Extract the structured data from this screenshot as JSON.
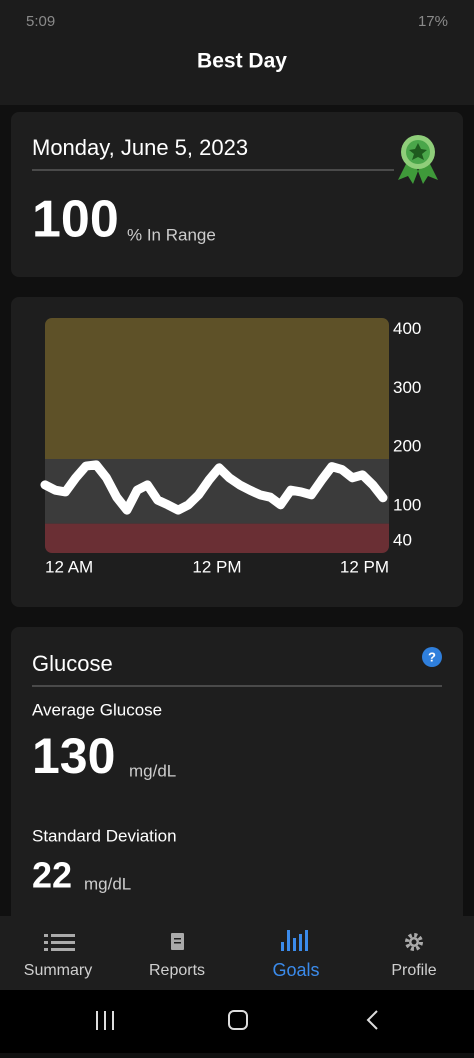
{
  "status_bar": {
    "time": "5:09",
    "battery": "17%"
  },
  "header": {
    "title": "Best Day"
  },
  "best_day_card": {
    "date": "Monday, June 5, 2023",
    "in_range_value": "100",
    "in_range_label": "% In Range"
  },
  "chart": {
    "type": "line",
    "ylim": [
      20,
      420
    ],
    "yticks": [
      40,
      100,
      200,
      300,
      400
    ],
    "target_range": [
      70,
      180
    ],
    "x_labels": [
      "12 AM",
      "12 PM",
      "12 PM"
    ],
    "values": [
      136,
      127,
      124,
      148,
      168,
      170,
      148,
      115,
      93,
      127,
      136,
      110,
      102,
      93,
      102,
      119,
      144,
      165,
      148,
      136,
      127,
      119,
      115,
      102,
      127,
      124,
      119,
      144,
      167,
      162,
      148,
      153,
      136,
      114
    ]
  },
  "glucose_card": {
    "title": "Glucose",
    "average_label": "Average Glucose",
    "average_value": "130",
    "average_unit": "mg/dL",
    "sd_label": "Standard Deviation",
    "sd_value": "22",
    "sd_unit": "mg/dL"
  },
  "bottom_nav": {
    "items": [
      "Summary",
      "Reports",
      "Goals",
      "Profile"
    ],
    "active": "Goals"
  }
}
